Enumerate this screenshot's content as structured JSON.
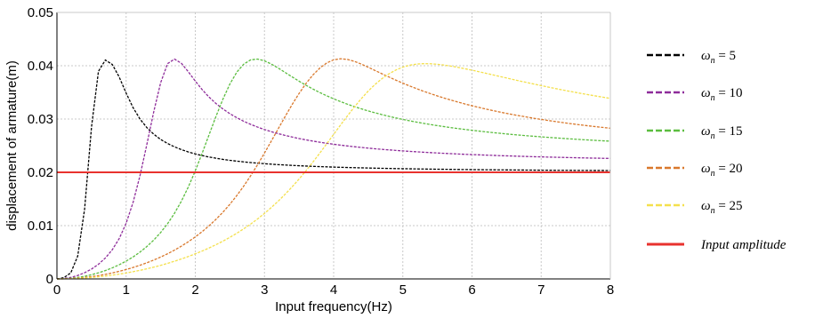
{
  "chart_data": {
    "type": "line",
    "xlabel": "Input frequency(Hz)",
    "ylabel": "displacement of armature(m)",
    "xlim": [
      0,
      8
    ],
    "ylim": [
      0,
      0.05
    ],
    "x_ticks": [
      "0",
      "1",
      "2",
      "3",
      "4",
      "5",
      "6",
      "7",
      "8"
    ],
    "y_ticks": [
      "0",
      "0.01",
      "0.02",
      "0.03",
      "0.04",
      "0.05"
    ],
    "grid": true,
    "legend_position": "right",
    "x_samples": [
      0,
      0.1,
      0.2,
      0.3,
      0.4,
      0.5,
      0.6,
      0.7,
      0.8,
      0.9,
      1.0,
      1.1,
      1.2,
      1.3,
      1.4,
      1.5,
      1.6,
      1.7,
      1.8,
      1.9,
      2.0,
      2.1,
      2.2,
      2.3,
      2.4,
      2.5,
      2.6,
      2.7,
      2.8,
      2.9,
      3.0,
      3.1,
      3.2,
      3.3,
      3.4,
      3.5,
      3.6,
      3.7,
      3.8,
      3.9,
      4.0,
      4.1,
      4.2,
      4.3,
      4.4,
      4.5,
      4.6,
      4.7,
      4.8,
      4.9,
      5.0,
      5.1,
      5.2,
      5.3,
      5.4,
      5.5,
      5.6,
      5.7,
      5.8,
      5.9,
      6.0,
      6.1,
      6.2,
      6.3,
      6.4,
      6.5,
      6.6,
      6.7,
      6.8,
      6.9,
      7.0,
      7.1,
      7.2,
      7.3,
      7.4,
      7.5,
      7.6,
      7.7,
      7.8,
      7.9,
      8.0
    ],
    "series": [
      {
        "name": "ω_n = 5",
        "legend_symbol": "ω",
        "legend_sub": "n",
        "legend_value": " = 5",
        "color": "#000000",
        "dashed": true,
        "values": [
          0,
          0.00023,
          0.00114,
          0.00427,
          0.01311,
          0.02855,
          0.03895,
          0.04107,
          0.04024,
          0.03788,
          0.03488,
          0.03215,
          0.03001,
          0.02839,
          0.02715,
          0.02616,
          0.0254,
          0.02478,
          0.02426,
          0.02382,
          0.02345,
          0.02314,
          0.02287,
          0.02264,
          0.02243,
          0.02225,
          0.0221,
          0.02196,
          0.02183,
          0.02172,
          0.02162,
          0.02153,
          0.02144,
          0.02137,
          0.0213,
          0.02124,
          0.02118,
          0.02112,
          0.02107,
          0.02103,
          0.02098,
          0.02094,
          0.02091,
          0.02087,
          0.02084,
          0.02081,
          0.02078,
          0.02075,
          0.02073,
          0.0207,
          0.02068,
          0.02066,
          0.02064,
          0.02062,
          0.0206,
          0.02058,
          0.02057,
          0.02055,
          0.02053,
          0.02052,
          0.02051,
          0.02049,
          0.02048,
          0.02047,
          0.02046,
          0.02045,
          0.02044,
          0.02043,
          0.02042,
          0.02041,
          0.0204,
          0.02039,
          0.02038,
          0.02038,
          0.02037,
          0.02036,
          0.02035,
          0.02035,
          0.02034,
          0.02034,
          0.02033
        ]
      },
      {
        "name": "ω_n = 10",
        "legend_symbol": "ω",
        "legend_sub": "n",
        "legend_value": " = 10",
        "color": "#8e2c9a",
        "dashed": true,
        "values": [
          0,
          7e-05,
          0.00028,
          0.00064,
          0.00116,
          0.00185,
          0.00275,
          0.00392,
          0.00548,
          0.00757,
          0.01043,
          0.01433,
          0.01934,
          0.02524,
          0.0314,
          0.03685,
          0.04041,
          0.04124,
          0.04045,
          0.03885,
          0.03712,
          0.0355,
          0.0341,
          0.0329,
          0.03188,
          0.031,
          0.03025,
          0.02958,
          0.029,
          0.02849,
          0.02803,
          0.02762,
          0.02725,
          0.02692,
          0.02662,
          0.02634,
          0.02609,
          0.02586,
          0.02565,
          0.02545,
          0.02527,
          0.0251,
          0.02495,
          0.0248,
          0.02467,
          0.02454,
          0.02442,
          0.02431,
          0.02421,
          0.02411,
          0.02402,
          0.02393,
          0.02385,
          0.02377,
          0.0237,
          0.02363,
          0.02356,
          0.0235,
          0.02344,
          0.02338,
          0.02333,
          0.02328,
          0.02323,
          0.02318,
          0.02313,
          0.02309,
          0.02305,
          0.02301,
          0.02297,
          0.02293,
          0.0229,
          0.02286,
          0.02283,
          0.0228,
          0.02277,
          0.02274,
          0.02271,
          0.02268,
          0.02266,
          0.02263,
          0.02261
        ]
      },
      {
        "name": "ω_n = 15",
        "legend_symbol": "ω",
        "legend_sub": "n",
        "legend_value": " = 15",
        "color": "#5bbd3f",
        "dashed": true,
        "values": [
          0,
          3e-05,
          0.00012,
          0.00028,
          0.0005,
          0.00079,
          0.00114,
          0.00157,
          0.00207,
          0.00266,
          0.00334,
          0.00412,
          0.00503,
          0.00608,
          0.0073,
          0.00872,
          0.01038,
          0.01233,
          0.01461,
          0.01727,
          0.02029,
          0.02361,
          0.02708,
          0.03052,
          0.03375,
          0.03657,
          0.0388,
          0.0403,
          0.0411,
          0.04125,
          0.04092,
          0.04031,
          0.03955,
          0.03873,
          0.0379,
          0.0371,
          0.03634,
          0.03563,
          0.03497,
          0.03436,
          0.03379,
          0.03327,
          0.03278,
          0.03233,
          0.03191,
          0.03152,
          0.03116,
          0.03082,
          0.0305,
          0.0302,
          0.02993,
          0.02966,
          0.02942,
          0.02919,
          0.02897,
          0.02876,
          0.02857,
          0.02838,
          0.02821,
          0.02804,
          0.02789,
          0.02774,
          0.02759,
          0.02746,
          0.02733,
          0.0272,
          0.02708,
          0.02697,
          0.02686,
          0.02676,
          0.02666,
          0.02656,
          0.02647,
          0.02638,
          0.02629,
          0.02621,
          0.02613,
          0.02606,
          0.02598,
          0.02591,
          0.02585
        ]
      },
      {
        "name": "ω_n = 20",
        "legend_symbol": "ω",
        "legend_sub": "n",
        "legend_value": " = 20",
        "color": "#d9782c",
        "dashed": true,
        "values": [
          0,
          2e-05,
          7e-05,
          0.00016,
          0.00028,
          0.00043,
          0.00062,
          0.00085,
          0.00112,
          0.00142,
          0.00176,
          0.00214,
          0.00256,
          0.00303,
          0.00354,
          0.00411,
          0.00473,
          0.00541,
          0.00616,
          0.00698,
          0.00788,
          0.00888,
          0.00998,
          0.01119,
          0.01253,
          0.01401,
          0.01564,
          0.01742,
          0.01935,
          0.02142,
          0.02361,
          0.02589,
          0.0282,
          0.0305,
          0.03272,
          0.0348,
          0.03667,
          0.03827,
          0.03956,
          0.04052,
          0.04111,
          0.04131,
          0.04118,
          0.04082,
          0.04031,
          0.03972,
          0.0391,
          0.03848,
          0.03788,
          0.03729,
          0.03673,
          0.0362,
          0.03569,
          0.03521,
          0.03476,
          0.03433,
          0.03392,
          0.03354,
          0.03317,
          0.03282,
          0.03249,
          0.03218,
          0.03188,
          0.03159,
          0.03132,
          0.03106,
          0.03081,
          0.03058,
          0.03035,
          0.03013,
          0.02993,
          0.02973,
          0.02954,
          0.02936,
          0.02918,
          0.02901,
          0.02885,
          0.0287,
          0.02855,
          0.02841,
          0.02827
        ]
      },
      {
        "name": "ω_n = 25",
        "legend_symbol": "ω",
        "legend_sub": "n",
        "legend_value": " = 25",
        "color": "#f4e04d",
        "dashed": true,
        "values": [
          0,
          1e-05,
          5e-05,
          0.0001,
          0.00018,
          0.00028,
          0.0004,
          0.00054,
          0.00071,
          0.0009,
          0.00111,
          0.00135,
          0.00161,
          0.0019,
          0.00221,
          0.00255,
          0.00292,
          0.00332,
          0.00375,
          0.00421,
          0.00471,
          0.00524,
          0.00581,
          0.00643,
          0.00709,
          0.0078,
          0.00857,
          0.0094,
          0.01029,
          0.01125,
          0.01229,
          0.01341,
          0.01461,
          0.0159,
          0.01728,
          0.01874,
          0.02029,
          0.02192,
          0.02361,
          0.02535,
          0.02712,
          0.02888,
          0.03061,
          0.03227,
          0.03383,
          0.03525,
          0.03651,
          0.03759,
          0.03849,
          0.0392,
          0.03974,
          0.0401,
          0.04031,
          0.04039,
          0.04037,
          0.04027,
          0.04012,
          0.03992,
          0.03969,
          0.03943,
          0.03916,
          0.03888,
          0.03859,
          0.03829,
          0.03799,
          0.0377,
          0.0374,
          0.03711,
          0.03683,
          0.03655,
          0.03627,
          0.036,
          0.03574,
          0.03548,
          0.03523,
          0.03499,
          0.03475,
          0.03452,
          0.0343,
          0.03408,
          0.03387
        ]
      },
      {
        "name": "Input amplitude",
        "legend_text": "Input amplitude",
        "color": "#e8322e",
        "dashed": false,
        "constant": 0.02
      }
    ]
  }
}
